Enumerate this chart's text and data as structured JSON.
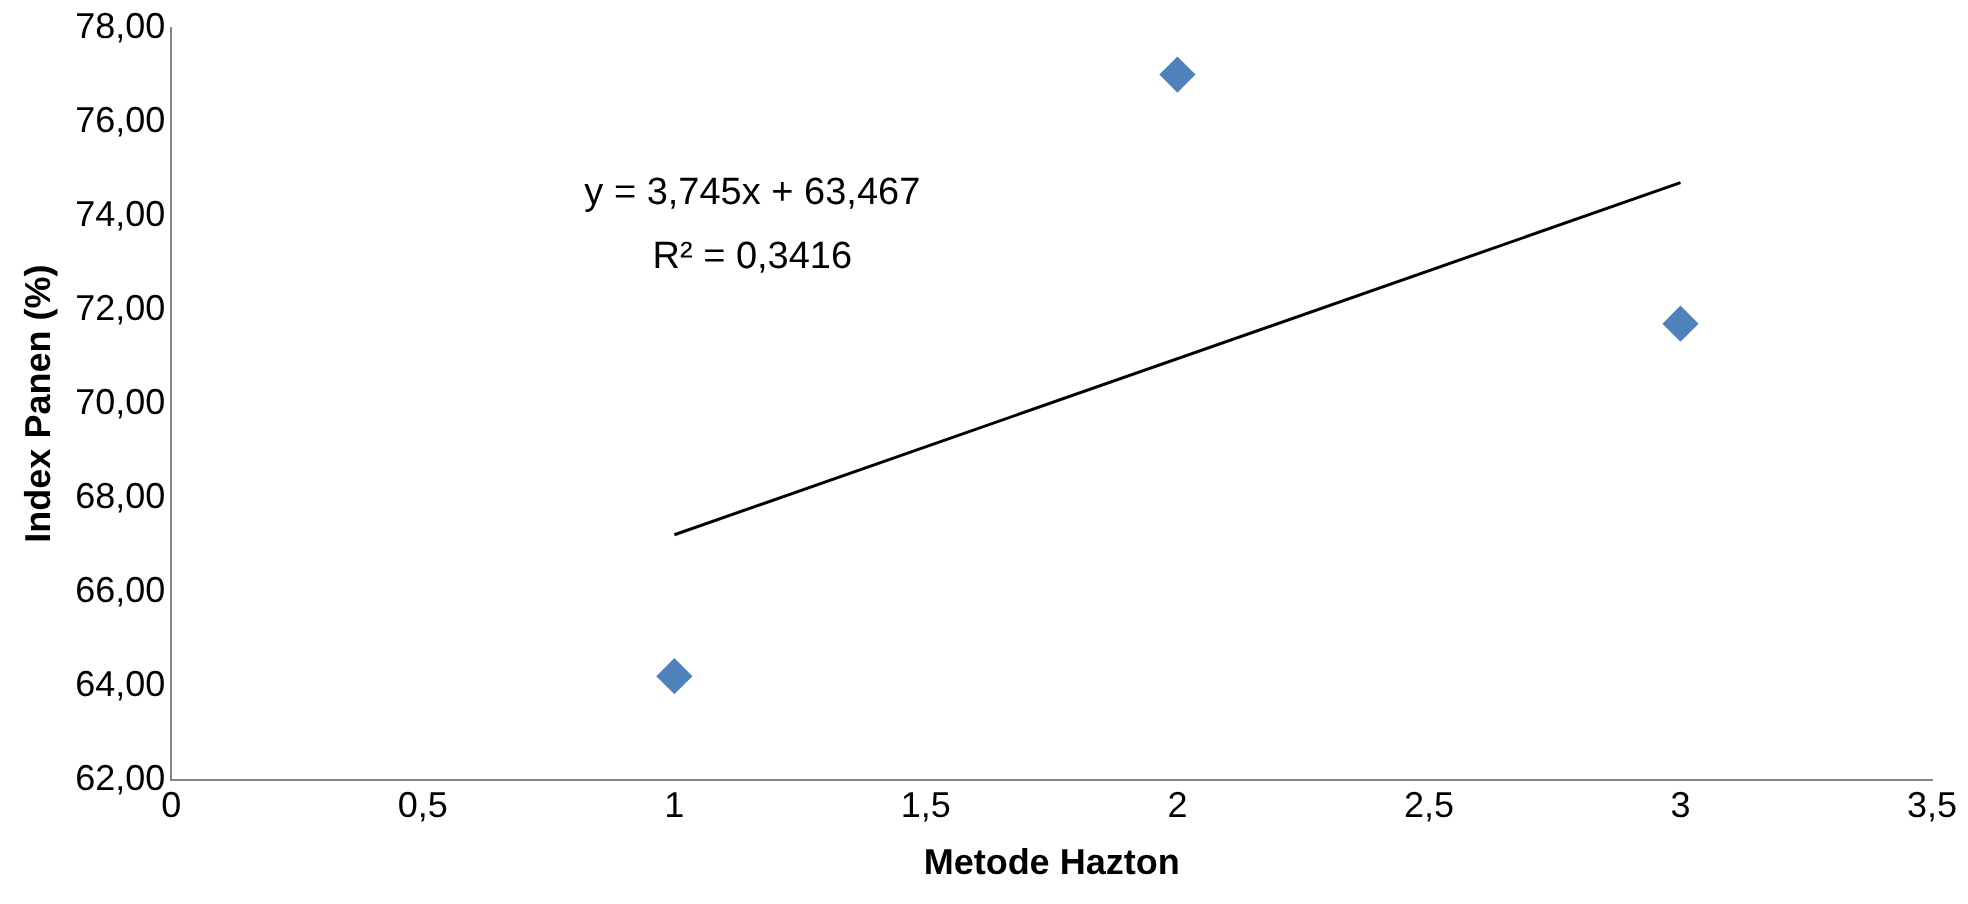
{
  "chart_data": {
    "type": "scatter",
    "xlabel": "Metode Hazton",
    "ylabel": "Index Panen (%)",
    "series": [
      {
        "color": "#4f81bd",
        "x": [
          1,
          2,
          3
        ],
        "values": [
          64.2,
          77.0,
          71.7
        ],
        "marker": "diamond"
      },
      {
        "type": "line",
        "color": "#000000",
        "x": [
          1,
          3
        ],
        "values": [
          67.21,
          74.7
        ],
        "marker": "none",
        "line_style": "solid"
      }
    ],
    "xlim": [
      0,
      3.5
    ],
    "xticks": [
      0,
      {
        "value": 0.5,
        "label": "0,5"
      },
      1,
      {
        "value": 1.5,
        "label": "1,5"
      },
      2,
      {
        "value": 2.5,
        "label": "2,5"
      },
      3,
      {
        "value": 3.5,
        "label": "3,5"
      }
    ],
    "ylim": [
      62,
      78
    ],
    "yticks": [
      {
        "value": 62,
        "label": "62,00"
      },
      {
        "value": 64,
        "label": "64,00"
      },
      {
        "value": 66,
        "label": "66,00"
      },
      {
        "value": 68,
        "label": "68,00"
      },
      {
        "value": 70,
        "label": "70,00"
      },
      {
        "value": 72,
        "label": "72,00"
      },
      {
        "value": 74,
        "label": "74,00"
      },
      {
        "value": 76,
        "label": "76,00"
      },
      {
        "value": 78,
        "label": "78,00"
      }
    ],
    "annotations": [
      "y = 3,745x + 63,467",
      "R² = 0,3416"
    ],
    "grid": false,
    "legend": false
  }
}
